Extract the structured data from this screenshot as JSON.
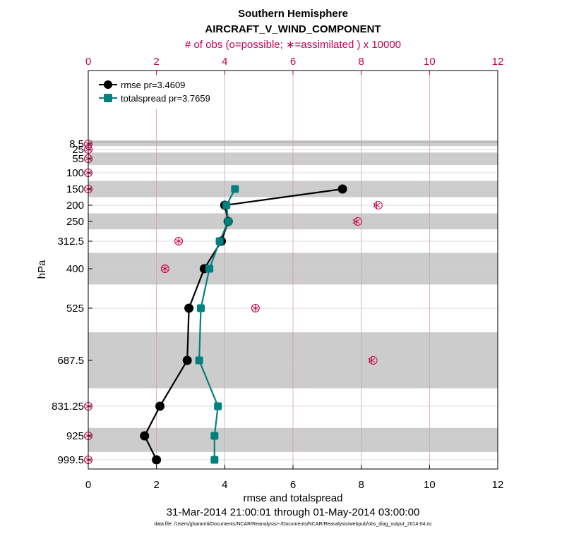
{
  "chart_data": {
    "type": "line",
    "title": "Southern Hemisphere",
    "subtitle": "AIRCRAFT_V_WIND_COMPONENT",
    "top_axis_label": "# of obs (o=possible; ∗=assimilated ) x 10000",
    "xlabel": "rmse and totalspread",
    "ylabel": "hPa",
    "xlim": [
      0,
      12
    ],
    "x_ticks": [
      "0",
      "2",
      "4",
      "6",
      "8",
      "10",
      "12"
    ],
    "top_ticks": [
      "0",
      "2",
      "4",
      "6",
      "8",
      "10",
      "12"
    ],
    "pressure_levels": [
      8.5,
      25,
      55,
      100,
      150,
      200,
      250,
      312.5,
      400,
      525,
      687.5,
      831.25,
      925,
      999.5
    ],
    "y_tick_labels": [
      "8.5",
      "25",
      "55",
      "100",
      "150",
      "200",
      "250",
      "312.5",
      "400",
      "525",
      "687.5",
      "831.25",
      "925",
      "999.5"
    ],
    "bands": [
      [
        0,
        15
      ],
      [
        35,
        75
      ],
      [
        125,
        175
      ],
      [
        225,
        275
      ],
      [
        350,
        450
      ],
      [
        600,
        775
      ],
      [
        900,
        975
      ]
    ],
    "series": [
      {
        "name": "rmse",
        "legend": "rmse pr=3.4609",
        "color": "#000000",
        "marker": "circle",
        "points": [
          [
            7.45,
            150
          ],
          [
            4.0,
            200
          ],
          [
            4.1,
            250
          ],
          [
            3.9,
            312.5
          ],
          [
            3.4,
            400
          ],
          [
            2.95,
            525
          ],
          [
            2.9,
            687.5
          ],
          [
            2.1,
            831.25
          ],
          [
            1.65,
            925
          ],
          [
            2.0,
            999.5
          ]
        ]
      },
      {
        "name": "totalspread",
        "legend": "totalspread pr=3.7659",
        "color": "#00807f",
        "marker": "square",
        "points": [
          [
            4.3,
            150
          ],
          [
            4.05,
            200
          ],
          [
            4.1,
            250
          ],
          [
            3.85,
            312.5
          ],
          [
            3.55,
            400
          ],
          [
            3.3,
            525
          ],
          [
            3.25,
            687.5
          ],
          [
            3.8,
            831.25
          ],
          [
            3.7,
            925
          ],
          [
            3.7,
            999.5
          ]
        ]
      }
    ],
    "obs_counts": [
      {
        "level": 8.5,
        "possible": 0,
        "assimilated": 0
      },
      {
        "level": 25,
        "possible": 0,
        "assimilated": 0
      },
      {
        "level": 55,
        "possible": 0,
        "assimilated": 0
      },
      {
        "level": 100,
        "possible": 0,
        "assimilated": 0
      },
      {
        "level": 150,
        "possible": 0,
        "assimilated": 0
      },
      {
        "level": 200,
        "possible": 8.5,
        "assimilated": 8.45
      },
      {
        "level": 250,
        "possible": 7.9,
        "assimilated": 7.85
      },
      {
        "level": 312.5,
        "possible": 2.65,
        "assimilated": 2.65
      },
      {
        "level": 400,
        "possible": 2.25,
        "assimilated": 2.25
      },
      {
        "level": 525,
        "possible": 4.9,
        "assimilated": 4.9
      },
      {
        "level": 687.5,
        "possible": 8.35,
        "assimilated": 8.3
      },
      {
        "level": 831.25,
        "possible": 0,
        "assimilated": 0
      },
      {
        "level": 925,
        "possible": 0,
        "assimilated": 0
      },
      {
        "level": 999.5,
        "possible": 0,
        "assimilated": 0
      }
    ],
    "date_range": "31-Mar-2014 21:00:01 through 01-May-2014 03:00:00",
    "data_file": "data file: /Users/gharamti/Documents/NCAR/Reanalysis/~/Documents/NCAR/Reanalysis/webpub/obs_diag_output_2014-04.nc",
    "colors": {
      "obs": "#c8004b",
      "band": "#cccccc",
      "grid": "#d2d2d2",
      "vgrid": "#c8a0b4"
    }
  }
}
